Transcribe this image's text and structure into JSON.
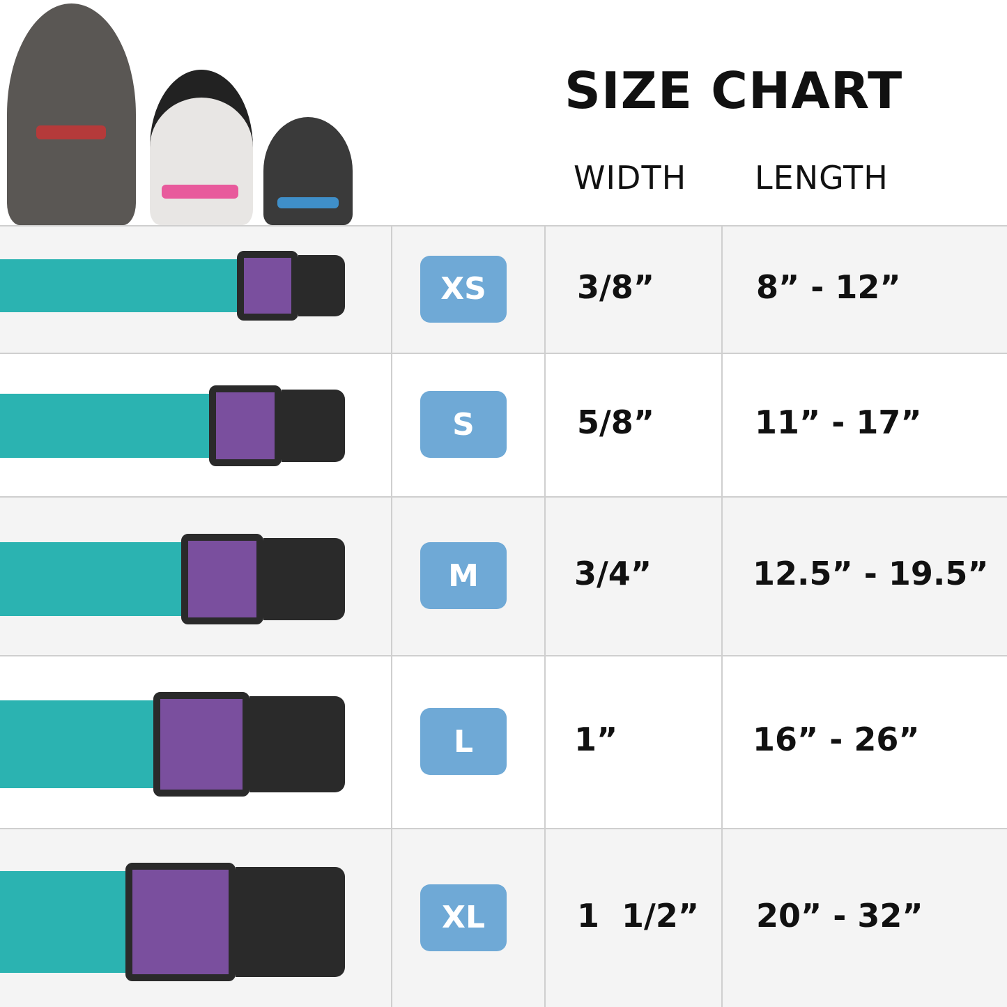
{
  "title": "SIZE CHART",
  "headers": {
    "width": "WIDTH",
    "length": "LENGTH"
  },
  "colors": {
    "badge": "#6fa9d6",
    "collar": "#2bb3b1",
    "buckle": "#2a2a2a"
  },
  "sizes": [
    {
      "size": "XS",
      "width": "3/8”",
      "length": "8” - 12”"
    },
    {
      "size": "S",
      "width": "5/8”",
      "length": "11” - 17”"
    },
    {
      "size": "M",
      "width": "3/4”",
      "length": "12.5” - 19.5”"
    },
    {
      "size": "L",
      "width": "1”",
      "length": "16” - 26”"
    },
    {
      "size": "XL",
      "width": "1  1/2”",
      "length": "20” - 32”"
    }
  ]
}
